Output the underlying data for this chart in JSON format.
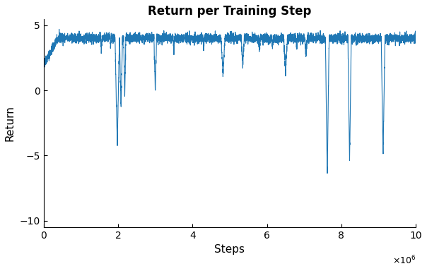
{
  "title": "Return per Training Step",
  "xlabel": "Steps",
  "ylabel": "Return",
  "xlim": [
    0,
    10000000.0
  ],
  "ylim": [
    -10.5,
    5.5
  ],
  "yticks": [
    -10,
    -5,
    0,
    5
  ],
  "xticks": [
    0,
    2000000,
    4000000,
    6000000,
    8000000,
    10000000
  ],
  "line_color": "#1f77b4",
  "line_width": 0.8,
  "title_fontsize": 12,
  "label_fontsize": 11,
  "tick_fontsize": 10,
  "seed": 42,
  "total_steps": 10000000,
  "n_points": 5000,
  "figsize": [
    6.04,
    3.84
  ],
  "dpi": 100
}
